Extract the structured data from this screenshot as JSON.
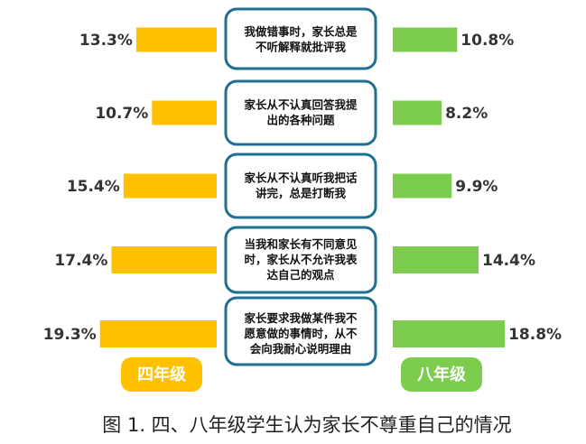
{
  "chart_data": {
    "type": "bar",
    "categories": [
      [
        "我做错事时，家长总是",
        "不听解释就批评我"
      ],
      [
        "家长从不认真回答我提",
        "出的各种问题"
      ],
      [
        "家长从不认真听我把话",
        "讲完，总是打断我"
      ],
      [
        "当我和家长有不同意见",
        "时，家长从不允许我表",
        "达自己的观点"
      ],
      [
        "家长要求我做某件我不",
        "愿意做的事情时，从不",
        "会向我耐心说明理由"
      ]
    ],
    "series": [
      {
        "name": "四年级",
        "color": "#ffc000",
        "values": [
          13.3,
          10.7,
          15.4,
          17.4,
          19.3
        ],
        "value_labels": [
          "13.3%",
          "10.7%",
          "15.4%",
          "17.4%",
          "19.3%"
        ]
      },
      {
        "name": "八年级",
        "color": "#7ccc4e",
        "values": [
          10.8,
          8.2,
          9.9,
          14.4,
          18.8
        ],
        "value_labels": [
          "10.8%",
          "8.2%",
          "9.9%",
          "14.4%",
          "18.8%"
        ]
      }
    ],
    "title": "图 1. 四、八年级学生认为家长不尊重自己的情况"
  }
}
